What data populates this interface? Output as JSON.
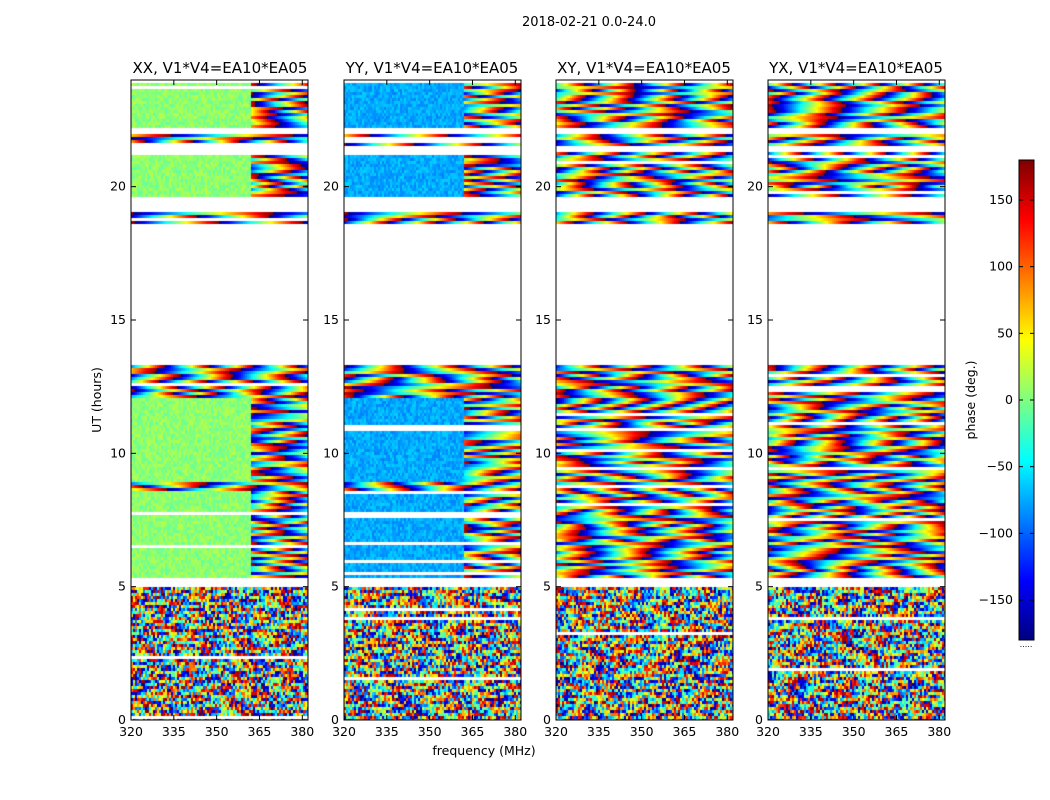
{
  "chart_data": {
    "type": "heatmap",
    "suptitle": "2018-02-21 0.0-24.0",
    "xlabel": "frequency (MHz)",
    "ylabel": "UT (hours)",
    "colorbar_label": "phase (deg.)",
    "colorbar_ticks": [
      150,
      100,
      50,
      0,
      -50,
      -100,
      -150
    ],
    "colorbar_tick_labels": [
      "150",
      "100",
      "50",
      "0",
      "−50",
      "−100",
      "−150"
    ],
    "colorbar_range": [
      -180,
      180
    ],
    "colorbar_footer": ".....",
    "colormap": "jet",
    "colormap_colors": [
      "#00007f",
      "#0000ff",
      "#007fff",
      "#00ffff",
      "#7fff7f",
      "#ffff00",
      "#ff7f00",
      "#ff0000",
      "#7f0000"
    ],
    "xlim": [
      320,
      382
    ],
    "ylim": [
      0,
      24
    ],
    "xticks": [
      320,
      335,
      350,
      365,
      380
    ],
    "xtick_labels": [
      "320",
      "335",
      "350",
      "365",
      "380"
    ],
    "yticks": [
      0,
      5,
      10,
      15,
      20
    ],
    "ytick_labels": [
      "0",
      "5",
      "10",
      "15",
      "20"
    ],
    "panels": [
      {
        "title": "XX, V1*V4=EA10*EA05",
        "product": "XX"
      },
      {
        "title": "YY, V1*V4=EA10*EA05",
        "product": "YY"
      },
      {
        "title": "XY, V1*V4=EA10*EA05",
        "product": "XY"
      },
      {
        "title": "YX, V1*V4=EA10*EA05",
        "product": "YX"
      }
    ],
    "data_ut_ranges_hours": [
      [
        0.0,
        5.1
      ],
      [
        5.4,
        9.0
      ],
      [
        9.0,
        13.4
      ],
      [
        18.7,
        19.1
      ],
      [
        19.7,
        21.4
      ],
      [
        21.6,
        22.0
      ],
      [
        22.3,
        23.9
      ]
    ],
    "blank_ut_ranges_hours": [
      [
        0.5,
        0.6
      ],
      [
        1.4,
        1.5
      ],
      [
        5.1,
        5.4
      ],
      [
        13.4,
        18.7
      ],
      [
        19.1,
        19.7
      ],
      [
        21.4,
        21.6
      ],
      [
        22.0,
        22.3
      ],
      [
        23.9,
        24.0
      ]
    ],
    "calibrated_phase_deg": {
      "XX": 5,
      "YY": -75
    },
    "calibrated_ut_ranges_hours": [
      [
        5.4,
        8.7
      ],
      [
        9.0,
        12.1
      ],
      [
        19.7,
        21.4
      ],
      [
        22.3,
        23.9
      ]
    ],
    "calibrated_freq_limit_mhz": 362
  }
}
